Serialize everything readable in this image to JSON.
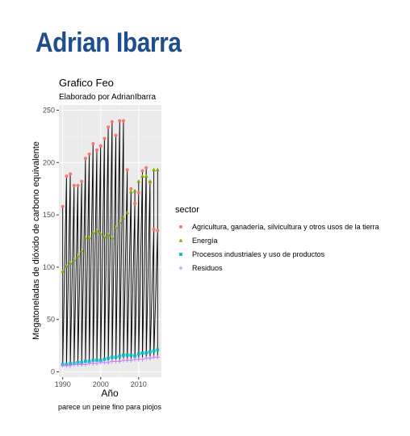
{
  "page": {
    "heading": "Adrian Ibarra",
    "heading_color": "#1f4e8c"
  },
  "chart_data": {
    "type": "line",
    "title": "Grafico Feo",
    "subtitle": "Elaborado por AdrianIbarra",
    "xlabel": "Año",
    "ylabel": "Megatoneladas de dióxido de carbono equivalente",
    "caption": "parece un peine fino para piojos",
    "xlim": [
      1989,
      2016
    ],
    "ylim": [
      -5,
      255
    ],
    "x_ticks": [
      1990,
      2000,
      2010
    ],
    "y_ticks": [
      0,
      50,
      100,
      150,
      200,
      250
    ],
    "grid": true,
    "panel_background": "#ebebeb",
    "legend": {
      "title": "sector",
      "position": "right"
    },
    "line_color": "#000000",
    "x": [
      1990,
      1991,
      1992,
      1993,
      1994,
      1995,
      1996,
      1997,
      1998,
      1999,
      2000,
      2001,
      2002,
      2003,
      2004,
      2005,
      2006,
      2007,
      2008,
      2009,
      2010,
      2011,
      2012,
      2013,
      2014,
      2015
    ],
    "series": [
      {
        "name": "Agricultura, ganadería, silvicultura y otros usos de la tierra",
        "color": "#f8766d",
        "marker": "circle",
        "values": [
          158,
          187,
          189,
          178,
          178,
          182,
          204,
          208,
          218,
          212,
          216,
          223,
          234,
          239,
          226,
          240,
          240,
          193,
          175,
          161,
          171,
          192,
          195,
          181,
          136,
          135
        ]
      },
      {
        "name": "Energía",
        "color": "#7cae00",
        "marker": "triangle",
        "values": [
          96,
          101,
          104,
          107,
          111,
          116,
          128,
          128,
          133,
          135,
          132,
          129,
          131,
          128,
          138,
          143,
          147,
          152,
          172,
          173,
          182,
          187,
          187,
          182,
          193,
          193
        ]
      },
      {
        "name": "Procesos industriales y uso de productos",
        "color": "#00bfc4",
        "marker": "square",
        "values": [
          7,
          7,
          8,
          8,
          9,
          9,
          10,
          10,
          11,
          11,
          11,
          12,
          13,
          14,
          14,
          15,
          16,
          16,
          16,
          15,
          17,
          18,
          18,
          19,
          20,
          21
        ]
      },
      {
        "name": "Residuos",
        "color": "#c77cff",
        "marker": "plus",
        "values": [
          6,
          6,
          6,
          7,
          7,
          7,
          7,
          8,
          8,
          8,
          9,
          9,
          9,
          10,
          10,
          10,
          11,
          11,
          11,
          12,
          12,
          12,
          13,
          13,
          14,
          14
        ]
      }
    ]
  }
}
